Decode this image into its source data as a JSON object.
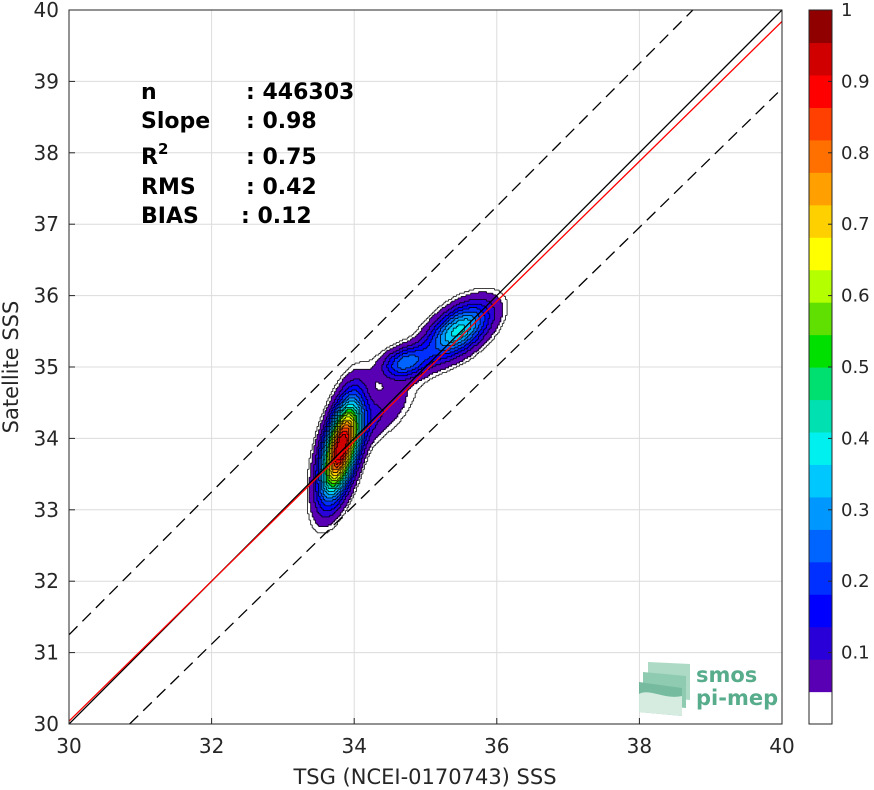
{
  "chart_data": {
    "type": "heatmap",
    "subtype": "density-contour-scatter",
    "xlabel": "TSG (NCEI-0170743) SSS",
    "ylabel": "Satellite SSS",
    "xlim": [
      30,
      40
    ],
    "ylim": [
      30,
      40
    ],
    "x_ticks": [
      "30",
      "32",
      "34",
      "36",
      "38",
      "40"
    ],
    "y_ticks": [
      "30",
      "31",
      "32",
      "33",
      "34",
      "35",
      "36",
      "37",
      "38",
      "39",
      "40"
    ],
    "grid": true,
    "stats": {
      "n_label": "n",
      "n_value": ": 446303",
      "slope_label": "Slope",
      "slope_value": ": 0.98",
      "r2_label": "R",
      "r2_sup": "2",
      "r2_value": ": 0.75",
      "rms_label": "RMS",
      "rms_value": ": 0.42",
      "bias_label": "BIAS",
      "bias_value": ": 0.12"
    },
    "lines": {
      "one_to_one": {
        "color": "#000000",
        "style": "solid",
        "points": [
          [
            30,
            30
          ],
          [
            40,
            40
          ]
        ]
      },
      "fit": {
        "color": "#ff0000",
        "style": "solid",
        "points": [
          [
            30,
            30.04
          ],
          [
            40,
            39.84
          ]
        ]
      },
      "upper_bound": {
        "color": "#000000",
        "style": "dashed",
        "points": [
          [
            30,
            31.25
          ],
          [
            40,
            41.25
          ]
        ]
      },
      "lower_bound": {
        "color": "#000000",
        "style": "dashed",
        "points": [
          [
            30.85,
            30
          ],
          [
            40,
            38.9
          ]
        ]
      }
    },
    "density_peaks": [
      {
        "x": 33.8,
        "y": 33.85,
        "peak": 1.0,
        "sx": 0.18,
        "sy": 0.45,
        "rho": 0.55
      },
      {
        "x": 35.45,
        "y": 35.5,
        "peak": 0.42,
        "sx": 0.3,
        "sy": 0.26,
        "rho": 0.55
      },
      {
        "x": 34.7,
        "y": 35.05,
        "peak": 0.27,
        "sx": 0.22,
        "sy": 0.15,
        "rho": 0.3
      },
      {
        "x": 34.3,
        "y": 34.3,
        "peak": 0.1,
        "sx": 0.35,
        "sy": 0.32,
        "rho": 0.7
      }
    ],
    "contour_levels": [
      0.03,
      0.05,
      0.1,
      0.15,
      0.2,
      0.25,
      0.3,
      0.35,
      0.4,
      0.45,
      0.5,
      0.55,
      0.6,
      0.65,
      0.7,
      0.75,
      0.8,
      0.85,
      0.9,
      0.95
    ],
    "colorbar": {
      "range": [
        0,
        1
      ],
      "ticks": [
        "0.1",
        "0.2",
        "0.3",
        "0.4",
        "0.5",
        "0.6",
        "0.7",
        "0.8",
        "0.9",
        "1"
      ],
      "colors": [
        "#ffffff",
        "#5a00b4",
        "#2a00d8",
        "#0000ff",
        "#0030ff",
        "#0064ff",
        "#0098ff",
        "#00c8ff",
        "#00f0f0",
        "#00e0b0",
        "#00e070",
        "#00e000",
        "#60e000",
        "#b4ff00",
        "#ffff00",
        "#ffd000",
        "#ffa000",
        "#ff7000",
        "#ff4000",
        "#ff0000",
        "#d00000",
        "#900000"
      ]
    },
    "watermark": {
      "line1": "smos",
      "line2": "pi-mep"
    }
  }
}
